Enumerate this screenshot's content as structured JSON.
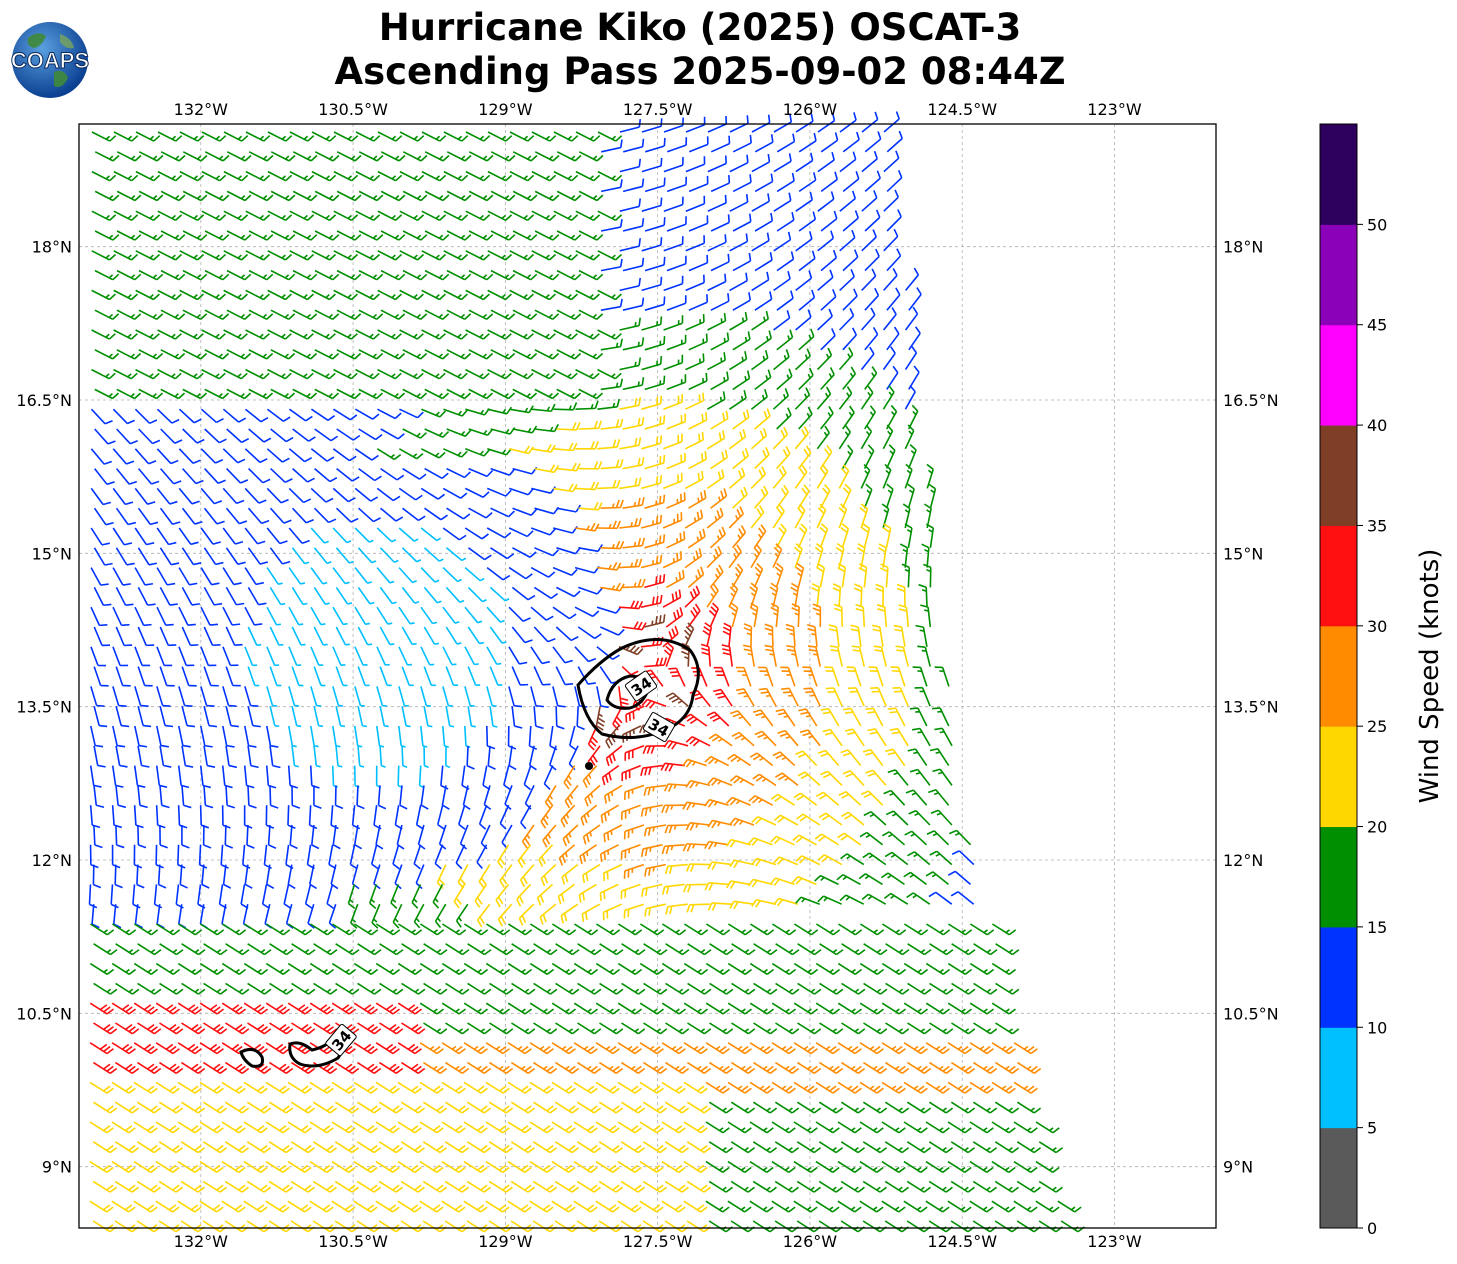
{
  "title": {
    "line1": "Hurricane Kiko (2025) OSCAT-3",
    "line2": "Ascending Pass 2025-09-02 08:44Z"
  },
  "logo": {
    "text": "COAPS",
    "icon": "globe-logo"
  },
  "map": {
    "lon_range": [
      -133.2,
      -122.0
    ],
    "lat_range": [
      8.4,
      19.2
    ],
    "lon_ticks": [
      {
        "value": -132.0,
        "label": "132°W"
      },
      {
        "value": -130.5,
        "label": "130.5°W"
      },
      {
        "value": -129.0,
        "label": "129°W"
      },
      {
        "value": -127.5,
        "label": "127.5°W"
      },
      {
        "value": -126.0,
        "label": "126°W"
      },
      {
        "value": -124.5,
        "label": "124.5°W"
      },
      {
        "value": -123.0,
        "label": "123°W"
      }
    ],
    "lat_ticks": [
      {
        "value": 18.0,
        "label": "18°N"
      },
      {
        "value": 16.5,
        "label": "16.5°N"
      },
      {
        "value": 15.0,
        "label": "15°N"
      },
      {
        "value": 13.5,
        "label": "13.5°N"
      },
      {
        "value": 12.0,
        "label": "12°N"
      },
      {
        "value": 10.5,
        "label": "10.5°N"
      },
      {
        "value": 9.0,
        "label": "9°N"
      }
    ],
    "grid": true,
    "storm_center": {
      "lon": -127.6,
      "lat": 13.75
    },
    "contour_label": "34",
    "contour_level_knots": 34
  },
  "colorbar": {
    "label": "Wind Speed (knots)",
    "bins": [
      {
        "min": 0,
        "max": 5,
        "color": "#5a5a5a"
      },
      {
        "min": 5,
        "max": 10,
        "color": "#00bfff"
      },
      {
        "min": 10,
        "max": 15,
        "color": "#0033ff"
      },
      {
        "min": 15,
        "max": 20,
        "color": "#008f00"
      },
      {
        "min": 20,
        "max": 25,
        "color": "#ffd700"
      },
      {
        "min": 25,
        "max": 30,
        "color": "#ff8c00"
      },
      {
        "min": 30,
        "max": 35,
        "color": "#ff0f0f"
      },
      {
        "min": 35,
        "max": 40,
        "color": "#7f3f27"
      },
      {
        "min": 40,
        "max": 45,
        "color": "#ff00ff"
      },
      {
        "min": 45,
        "max": 50,
        "color": "#8b00b9"
      },
      {
        "min": 50,
        "max": 55,
        "color": "#2e005e"
      }
    ],
    "ticks": [
      "0",
      "5",
      "10",
      "15",
      "20",
      "25",
      "30",
      "35",
      "40",
      "45",
      "50"
    ]
  }
}
